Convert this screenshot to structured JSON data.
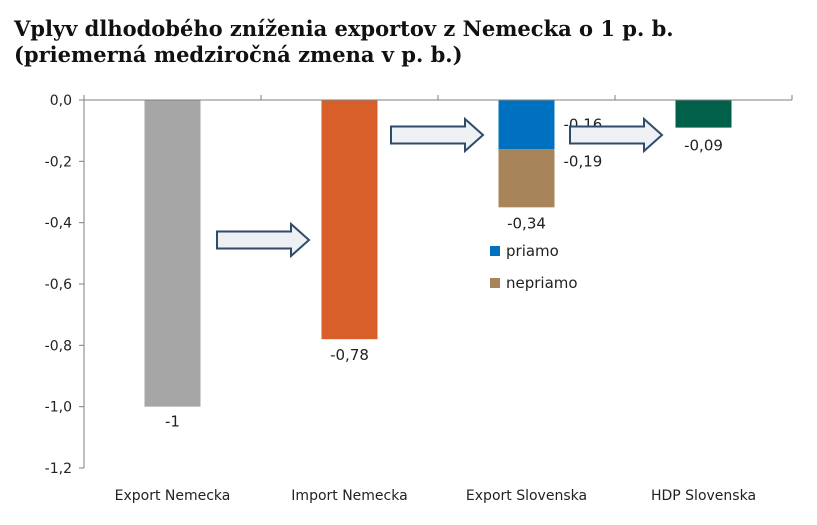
{
  "title": {
    "line1": "Vplyv dlhodobého zníženia exportov z Nemecka o 1 p. b.",
    "line2": "(priemerná medziročná zmena v p. b.)"
  },
  "chart_data": {
    "type": "bar",
    "stacked": true,
    "categories": [
      "Export Nemecka",
      "Import Nemecka",
      "Export Slovenska",
      "HDP Slovenska"
    ],
    "ylim": [
      -1.2,
      0.0
    ],
    "yticks": [
      0.0,
      -0.2,
      -0.4,
      -0.6,
      -0.8,
      -1.0,
      -1.2
    ],
    "ytick_labels": [
      "0,0",
      "-0,2",
      "-0,4",
      "-0,6",
      "-0,8",
      "-1,0",
      "-1,2"
    ],
    "grid": false,
    "legend_position": "inside-center-right",
    "legend": [
      {
        "name": "priamo",
        "color": "#0070c0"
      },
      {
        "name": "nepriamo",
        "color": "#a7845a"
      }
    ],
    "bars": [
      {
        "category": "Export Nemecka",
        "segments": [
          {
            "value": -1.0,
            "color": "#a6a6a6"
          }
        ],
        "labels": [
          "-1"
        ]
      },
      {
        "category": "Import Nemecka",
        "segments": [
          {
            "value": -0.78,
            "color": "#d95f2a"
          }
        ],
        "labels": [
          "-0,78"
        ]
      },
      {
        "category": "Export Slovenska",
        "segments": [
          {
            "series": "priamo",
            "value": -0.16,
            "color": "#0070c0"
          },
          {
            "series": "nepriamo",
            "value": -0.19,
            "color": "#a7845a"
          }
        ],
        "labels": [
          "-0,16",
          "-0,19",
          "-0,34"
        ]
      },
      {
        "category": "HDP Slovenska",
        "segments": [
          {
            "value": -0.09,
            "color": "#00604a"
          }
        ],
        "labels": [
          "-0,09"
        ]
      }
    ],
    "arrows": [
      "Export Nemecka → Import Nemecka",
      "Import Nemecka → Export Slovenska",
      "Export Slovenska → HDP Slovenska"
    ]
  }
}
